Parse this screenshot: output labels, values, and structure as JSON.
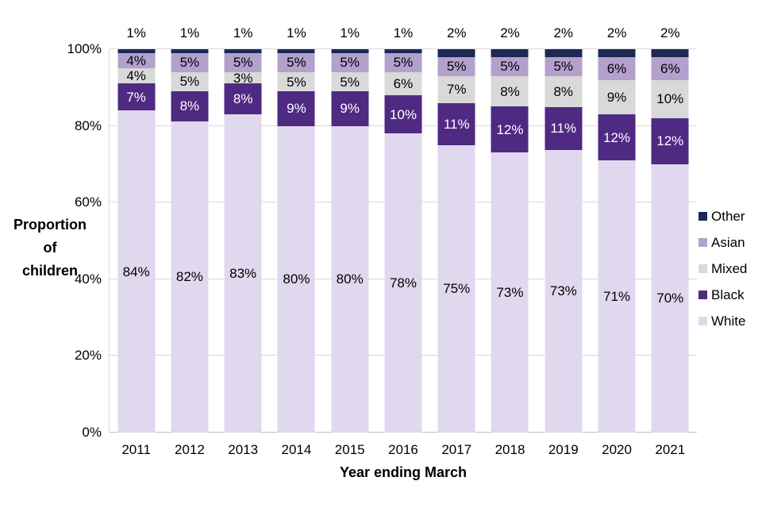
{
  "chart_data": {
    "type": "bar",
    "stacked": true,
    "percent_stacked": true,
    "title": "",
    "xlabel": "Year ending March",
    "ylabel": "Proportion of children",
    "ylabel_lines": [
      "Proportion",
      "of",
      "children"
    ],
    "categories": [
      "2011",
      "2012",
      "2013",
      "2014",
      "2015",
      "2016",
      "2017",
      "2018",
      "2019",
      "2020",
      "2021"
    ],
    "series": [
      {
        "name": "Other",
        "color": "#1C2955",
        "label_color": "#000000",
        "label_position": "above",
        "values": [
          1,
          1,
          1,
          1,
          1,
          1,
          2,
          2,
          2,
          2,
          2
        ]
      },
      {
        "name": "Asian",
        "color": "#B4A0CD",
        "label_color": "#000000",
        "label_position": "inside",
        "values": [
          4,
          5,
          5,
          5,
          5,
          5,
          5,
          5,
          5,
          6,
          6
        ]
      },
      {
        "name": "Mixed",
        "color": "#D9D9D9",
        "label_color": "#000000",
        "label_position": "inside",
        "values": [
          4,
          5,
          3,
          5,
          5,
          6,
          7,
          8,
          8,
          9,
          10
        ]
      },
      {
        "name": "Black",
        "color": "#4E2A82",
        "label_color": "#FFFFFF",
        "label_position": "inside",
        "values": [
          7,
          8,
          8,
          9,
          9,
          10,
          11,
          12,
          11,
          12,
          12
        ]
      },
      {
        "name": "White",
        "color": "#E0D8EE",
        "label_color": "#000000",
        "label_position": "inside",
        "values": [
          84,
          82,
          83,
          80,
          80,
          78,
          75,
          73,
          73,
          71,
          70
        ]
      }
    ],
    "y_ticks": [
      "0%",
      "20%",
      "40%",
      "60%",
      "80%",
      "100%"
    ],
    "ylim": [
      0,
      100
    ],
    "grid": true,
    "legend_position": "right",
    "legend": [
      "Other",
      "Asian",
      "Mixed",
      "Black",
      "White"
    ],
    "value_suffix": "%"
  },
  "colors": {
    "background": "#FFFFFF",
    "gridline": "#D9D9D9",
    "axis_line": "#BFBFBF",
    "text": "#000000"
  }
}
